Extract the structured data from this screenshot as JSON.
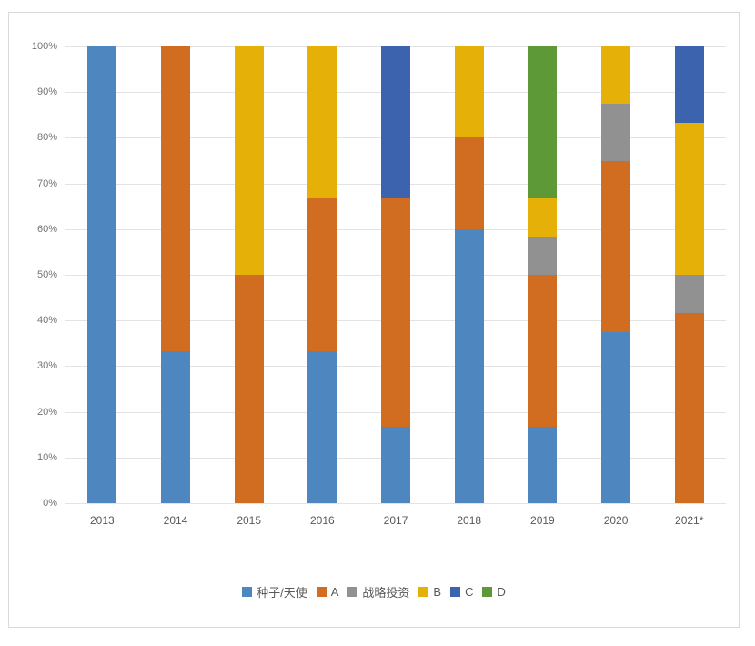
{
  "chart_data": {
    "type": "bar",
    "stacked": true,
    "percent": true,
    "title": "",
    "xlabel": "",
    "ylabel": "",
    "categories": [
      "2013",
      "2014",
      "2015",
      "2016",
      "2017",
      "2018",
      "2019",
      "2020",
      "2021*"
    ],
    "series": [
      {
        "name": "种子/天使",
        "color": "#4E87BF",
        "values": [
          100,
          33.3,
          0,
          33.3,
          16.7,
          60,
          16.7,
          37.5,
          0
        ]
      },
      {
        "name": "A",
        "color": "#D16D20",
        "values": [
          0,
          66.7,
          50,
          33.4,
          50,
          20,
          33.3,
          37.5,
          41.7
        ]
      },
      {
        "name": "战略投资",
        "color": "#919191",
        "values": [
          0,
          0,
          0,
          0,
          0,
          0,
          8.3,
          12.5,
          8.3
        ]
      },
      {
        "name": "B",
        "color": "#E5B007",
        "values": [
          0,
          0,
          50,
          33.3,
          0,
          20,
          8.4,
          12.5,
          33.3
        ]
      },
      {
        "name": "C",
        "color": "#3B63AE",
        "values": [
          0,
          0,
          0,
          0,
          33.3,
          0,
          0,
          0,
          16.7
        ]
      },
      {
        "name": "D",
        "color": "#5E9938",
        "values": [
          0,
          0,
          0,
          0,
          0,
          0,
          33.3,
          0,
          0
        ]
      }
    ],
    "y_ticks": [
      "100%",
      "90%",
      "80%",
      "70%",
      "60%",
      "50%",
      "40%",
      "30%",
      "20%",
      "10%",
      "0%"
    ],
    "ylim": [
      0,
      100
    ],
    "grid": true,
    "legend_position": "bottom",
    "colors": {
      "background": "#FFFFFF",
      "frame_border": "#D9D9D9",
      "gridline": "#E3E3E3",
      "tick_label": "#737373",
      "axis_label": "#595959"
    }
  }
}
